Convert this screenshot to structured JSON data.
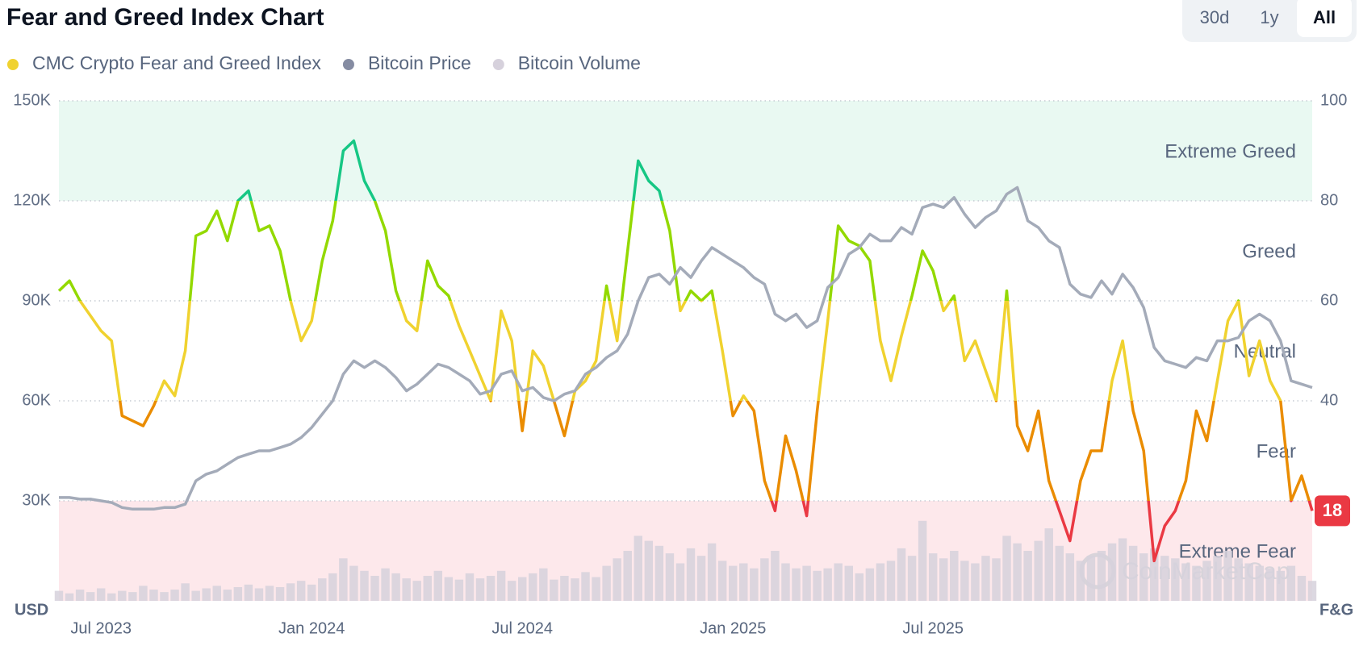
{
  "chart_data": {
    "type": "line",
    "title": "Fear and Greed Index Chart",
    "range_buttons": [
      "30d",
      "1y",
      "All"
    ],
    "active_button": 2,
    "y_label": "USD",
    "y2_label": "F&G",
    "watermark": "CoinMarketCap",
    "grid": true,
    "ylim": [
      0,
      150000
    ],
    "yticks": [
      {
        "value": 30000,
        "label": "30K"
      },
      {
        "value": 60000,
        "label": "60K"
      },
      {
        "value": 90000,
        "label": "90K"
      },
      {
        "value": 120000,
        "label": "120K"
      },
      {
        "value": 150000,
        "label": "150K"
      }
    ],
    "y2lim": [
      0,
      100
    ],
    "y2ticks": [
      40,
      60,
      80,
      100
    ],
    "vlim": [
      0,
      400
    ],
    "zones": [
      {
        "label": "Extreme Fear",
        "from": 0,
        "to": 20,
        "color": "#ea3943",
        "band": "#fde8eb"
      },
      {
        "label": "Fear",
        "from": 20,
        "to": 40,
        "color": "#ea8c00"
      },
      {
        "label": "Neutral",
        "from": 40,
        "to": 60,
        "color": "#f0d22f"
      },
      {
        "label": "Greed",
        "from": 60,
        "to": 80,
        "color": "#93d900"
      },
      {
        "label": "Extreme Greed",
        "from": 80,
        "to": 100,
        "color": "#16c784",
        "band": "#e9f9f2"
      }
    ],
    "categories": [
      null,
      null,
      null,
      null,
      "Jul 2023",
      null,
      null,
      null,
      null,
      null,
      null,
      null,
      null,
      null,
      null,
      null,
      null,
      null,
      null,
      null,
      null,
      null,
      null,
      null,
      "Jan 2024",
      null,
      null,
      null,
      null,
      null,
      null,
      null,
      null,
      null,
      null,
      null,
      null,
      null,
      null,
      null,
      null,
      null,
      null,
      null,
      "Jul 2024",
      null,
      null,
      null,
      null,
      null,
      null,
      null,
      null,
      null,
      null,
      null,
      null,
      null,
      null,
      null,
      null,
      null,
      null,
      null,
      "Jan 2025",
      null,
      null,
      null,
      null,
      null,
      null,
      null,
      null,
      null,
      null,
      null,
      null,
      null,
      null,
      null,
      null,
      null,
      null,
      "Jul 2025",
      null,
      null,
      null,
      null,
      null,
      null,
      null,
      null,
      null,
      null,
      null,
      null,
      null,
      null,
      null,
      null,
      null,
      null,
      null,
      null,
      null,
      null,
      null,
      null,
      null,
      null,
      null,
      null,
      null,
      null,
      null,
      null,
      null,
      null,
      null,
      null
    ],
    "series": [
      {
        "name": "CMC Crypto Fear and Greed Index",
        "color": "#f0d22f",
        "axis": "y2",
        "values": [
          62,
          64,
          60,
          57,
          54,
          52,
          37,
          36,
          35,
          39,
          44,
          41,
          50,
          73,
          74,
          78,
          72,
          80,
          82,
          74,
          75,
          70,
          60,
          52,
          56,
          68,
          76,
          90,
          92,
          84,
          80,
          74,
          62,
          56,
          54,
          68,
          63,
          61,
          55,
          50,
          45,
          40,
          58,
          52,
          34,
          50,
          47,
          40,
          33,
          42,
          44,
          48,
          63,
          52,
          70,
          88,
          84,
          82,
          74,
          58,
          62,
          60,
          62,
          50,
          37,
          41,
          38,
          24,
          18,
          33,
          26,
          17,
          38,
          56,
          75,
          72,
          71,
          68,
          52,
          44,
          53,
          61,
          70,
          66,
          58,
          61,
          48,
          52,
          46,
          40,
          62,
          35,
          30,
          38,
          24,
          18,
          12,
          24,
          30,
          30,
          44,
          52,
          38,
          30,
          8,
          15,
          18,
          24,
          38,
          32,
          44,
          56,
          60,
          45,
          52,
          44,
          40,
          20,
          25,
          18
        ]
      },
      {
        "name": "Bitcoin Price",
        "color": "#a4abb9",
        "values": [
          31000,
          31000,
          30500,
          30500,
          30000,
          29500,
          28000,
          27500,
          27500,
          27500,
          28000,
          28000,
          29000,
          36000,
          38000,
          39000,
          41000,
          43000,
          44000,
          45000,
          45000,
          46000,
          47000,
          49000,
          52000,
          56000,
          60000,
          68000,
          72000,
          70000,
          72000,
          70000,
          67000,
          63000,
          65000,
          68000,
          71000,
          70000,
          68000,
          66000,
          62000,
          63000,
          68000,
          69000,
          63000,
          64000,
          61000,
          60000,
          62000,
          63000,
          68000,
          70000,
          73000,
          75000,
          80000,
          90000,
          97000,
          98000,
          95000,
          100000,
          97000,
          102000,
          106000,
          104000,
          102000,
          100000,
          97000,
          95000,
          86000,
          84000,
          86000,
          82000,
          84000,
          94000,
          97000,
          104000,
          106000,
          110000,
          108000,
          108000,
          112000,
          110000,
          118000,
          119000,
          118000,
          121000,
          116000,
          112000,
          115000,
          117000,
          122000,
          124000,
          114000,
          112000,
          108000,
          106000,
          95000,
          92000,
          91000,
          96000,
          92000,
          98000,
          94000,
          88000,
          76000,
          72000,
          71000,
          70000,
          73000,
          72000,
          78000,
          78000,
          79000,
          84000,
          86000,
          84000,
          78000,
          66000,
          65000,
          64000
        ]
      },
      {
        "name": "Bitcoin Volume",
        "color": "#d6d1dc",
        "axis": "volume",
        "values": [
          8,
          6,
          9,
          7,
          10,
          6,
          8,
          7,
          12,
          9,
          7,
          9,
          14,
          8,
          10,
          12,
          9,
          11,
          13,
          10,
          12,
          11,
          14,
          16,
          13,
          18,
          22,
          34,
          28,
          24,
          20,
          26,
          22,
          18,
          16,
          20,
          24,
          19,
          17,
          22,
          18,
          20,
          24,
          16,
          19,
          22,
          26,
          17,
          20,
          18,
          23,
          19,
          28,
          34,
          40,
          52,
          48,
          44,
          38,
          30,
          42,
          36,
          46,
          32,
          28,
          30,
          26,
          34,
          40,
          30,
          26,
          28,
          24,
          26,
          30,
          28,
          22,
          26,
          30,
          32,
          42,
          36,
          64,
          38,
          34,
          40,
          32,
          30,
          36,
          34,
          52,
          46,
          40,
          48,
          58,
          44,
          38,
          32,
          36,
          40,
          46,
          50,
          44,
          38,
          42,
          36,
          34,
          30,
          28,
          32,
          36,
          40,
          34,
          30,
          28,
          26,
          24,
          28,
          20,
          16
        ]
      }
    ]
  }
}
